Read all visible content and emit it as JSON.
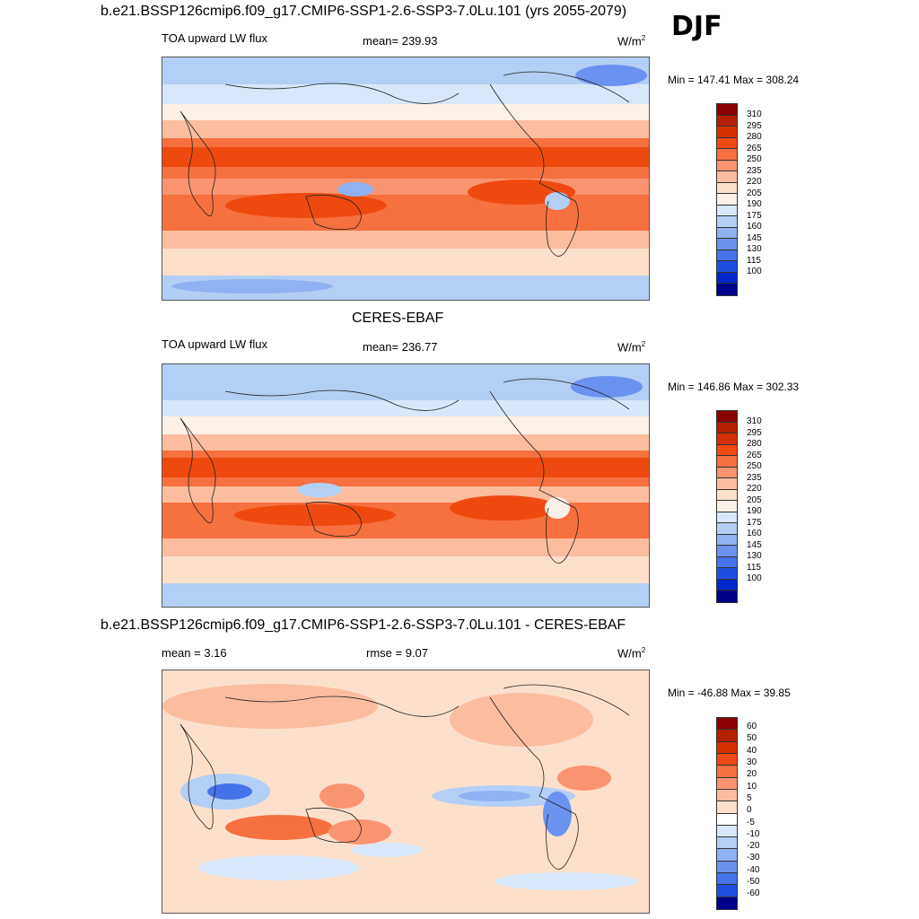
{
  "season": "DJF",
  "panels": [
    {
      "title": "b.e21.BSSP126cmip6.f09_g17.CMIP6-SSP1-2.6-SSP3-7.0Lu.101 (yrs 2055-2079)",
      "left_label": "TOA upward LW flux",
      "center_label": "mean= 239.93",
      "units": "W/m",
      "units_sup": "2",
      "minmax": "Min = 147.41 Max = 308.24"
    },
    {
      "title": "CERES-EBAF",
      "left_label": "TOA upward LW flux",
      "center_label": "mean= 236.77",
      "units": "W/m",
      "units_sup": "2",
      "minmax": "Min = 146.86 Max = 302.33"
    },
    {
      "title": "b.e21.BSSP126cmip6.f09_g17.CMIP6-SSP1-2.6-SSP3-7.0Lu.101 - CERES-EBAF",
      "left_label": "mean =   3.16",
      "center_label": "rmse =   9.07",
      "units": "W/m",
      "units_sup": "2",
      "minmax": "Min = -46.88 Max =  39.85"
    }
  ],
  "colorbars": {
    "flux": {
      "labels": [
        "310",
        "295",
        "280",
        "265",
        "250",
        "235",
        "220",
        "205",
        "190",
        "175",
        "160",
        "145",
        "130",
        "115",
        "100"
      ],
      "colors": [
        "#8b0000",
        "#b22000",
        "#d43000",
        "#ee4a10",
        "#f77040",
        "#fa9470",
        "#fcbd9e",
        "#fde0cc",
        "#fdf0e6",
        "#d8e8fa",
        "#b4cff5",
        "#8eb2f2",
        "#6a93ef",
        "#4473ea",
        "#1f4fe0",
        "#0028c8",
        "#00008b"
      ]
    },
    "diff": {
      "labels": [
        "60",
        "50",
        "40",
        "30",
        "20",
        "10",
        "5",
        "0",
        "-5",
        "-10",
        "-20",
        "-30",
        "-40",
        "-50",
        "-60"
      ],
      "colors": [
        "#8b0000",
        "#b22000",
        "#d43000",
        "#ee4a10",
        "#f77040",
        "#fa9470",
        "#fcbd9e",
        "#fde0cc",
        "#ffffff",
        "#d8e8fa",
        "#b4cff5",
        "#8eb2f2",
        "#6a93ef",
        "#4473ea",
        "#1f4fe0",
        "#00008b"
      ]
    }
  }
}
